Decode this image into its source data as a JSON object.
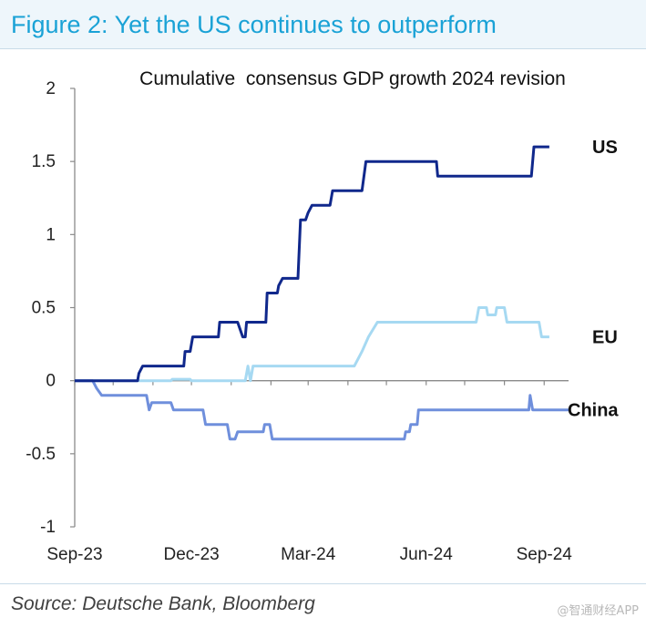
{
  "header": {
    "title": "Figure 2: Yet the US continues to outperform"
  },
  "footer": {
    "source": "Source: Deutsche Bank, Bloomberg",
    "watermark": "@智通财经APP"
  },
  "colors": {
    "us": "#10288c",
    "eu": "#a6d9f2",
    "china": "#6f8fdc",
    "heading": "#1aa2d6"
  },
  "chart_data": {
    "type": "line",
    "title": "Cumulative  consensus GDP growth 2024 revision",
    "xlabel": "",
    "ylabel": "",
    "x_range": [
      "2023-09-01",
      "2024-09-20"
    ],
    "ylim": [
      -1,
      2
    ],
    "yticks": [
      {
        "value": 2,
        "label": "2"
      },
      {
        "value": 1.5,
        "label": "1.5"
      },
      {
        "value": 1,
        "label": "1"
      },
      {
        "value": 0.5,
        "label": "0.5"
      },
      {
        "value": 0,
        "label": "0"
      },
      {
        "value": -0.5,
        "label": "-0.5"
      },
      {
        "value": -1,
        "label": "-1"
      }
    ],
    "xticks": [
      {
        "date": "2023-09-01",
        "label": "Sep-23"
      },
      {
        "date": "2023-12-01",
        "label": "Dec-23"
      },
      {
        "date": "2024-03-01",
        "label": "Mar-24"
      },
      {
        "date": "2024-06-01",
        "label": "Jun-24"
      },
      {
        "date": "2024-09-01",
        "label": "Sep-24"
      }
    ],
    "grid": false,
    "series": [
      {
        "name": "US",
        "points": [
          [
            "2023-09-01",
            0
          ],
          [
            "2023-10-20",
            0
          ],
          [
            "2023-10-21",
            0.05
          ],
          [
            "2023-10-24",
            0.1
          ],
          [
            "2023-11-25",
            0.1
          ],
          [
            "2023-11-26",
            0.2
          ],
          [
            "2023-11-30",
            0.2
          ],
          [
            "2023-12-02",
            0.3
          ],
          [
            "2023-12-22",
            0.3
          ],
          [
            "2023-12-23",
            0.4
          ],
          [
            "2024-01-06",
            0.4
          ],
          [
            "2024-01-10",
            0.3
          ],
          [
            "2024-01-12",
            0.3
          ],
          [
            "2024-01-13",
            0.4
          ],
          [
            "2024-01-28",
            0.4
          ],
          [
            "2024-01-29",
            0.6
          ],
          [
            "2024-02-06",
            0.6
          ],
          [
            "2024-02-07",
            0.65
          ],
          [
            "2024-02-10",
            0.7
          ],
          [
            "2024-02-22",
            0.7
          ],
          [
            "2024-02-24",
            1.1
          ],
          [
            "2024-02-28",
            1.1
          ],
          [
            "2024-03-01",
            1.15
          ],
          [
            "2024-03-04",
            1.2
          ],
          [
            "2024-03-18",
            1.2
          ],
          [
            "2024-03-20",
            1.3
          ],
          [
            "2024-04-12",
            1.3
          ],
          [
            "2024-04-15",
            1.5
          ],
          [
            "2024-06-09",
            1.5
          ],
          [
            "2024-06-10",
            1.4
          ],
          [
            "2024-08-22",
            1.4
          ],
          [
            "2024-08-24",
            1.6
          ],
          [
            "2024-09-05",
            1.6
          ]
        ]
      },
      {
        "name": "EU",
        "points": [
          [
            "2023-09-01",
            0
          ],
          [
            "2023-11-15",
            0
          ],
          [
            "2023-11-16",
            0.01
          ],
          [
            "2023-11-30",
            0.01
          ],
          [
            "2023-12-01",
            0
          ],
          [
            "2024-01-12",
            0
          ],
          [
            "2024-01-14",
            0.1
          ],
          [
            "2024-01-16",
            0
          ],
          [
            "2024-01-18",
            0.1
          ],
          [
            "2024-04-06",
            0.1
          ],
          [
            "2024-04-12",
            0.2
          ],
          [
            "2024-04-17",
            0.3
          ],
          [
            "2024-04-24",
            0.4
          ],
          [
            "2024-07-10",
            0.4
          ],
          [
            "2024-07-12",
            0.5
          ],
          [
            "2024-07-18",
            0.5
          ],
          [
            "2024-07-19",
            0.45
          ],
          [
            "2024-07-25",
            0.45
          ],
          [
            "2024-07-26",
            0.5
          ],
          [
            "2024-08-01",
            0.5
          ],
          [
            "2024-08-03",
            0.4
          ],
          [
            "2024-08-28",
            0.4
          ],
          [
            "2024-08-30",
            0.3
          ],
          [
            "2024-09-05",
            0.3
          ]
        ]
      },
      {
        "name": "China",
        "points": [
          [
            "2023-09-01",
            0
          ],
          [
            "2023-09-15",
            0
          ],
          [
            "2023-09-18",
            -0.05
          ],
          [
            "2023-09-22",
            -0.1
          ],
          [
            "2023-10-27",
            -0.1
          ],
          [
            "2023-10-29",
            -0.2
          ],
          [
            "2023-10-31",
            -0.15
          ],
          [
            "2023-11-15",
            -0.15
          ],
          [
            "2023-11-17",
            -0.2
          ],
          [
            "2023-12-10",
            -0.2
          ],
          [
            "2023-12-12",
            -0.3
          ],
          [
            "2023-12-29",
            -0.3
          ],
          [
            "2023-12-31",
            -0.4
          ],
          [
            "2024-01-04",
            -0.4
          ],
          [
            "2024-01-06",
            -0.35
          ],
          [
            "2024-01-26",
            -0.35
          ],
          [
            "2024-01-27",
            -0.3
          ],
          [
            "2024-01-31",
            -0.3
          ],
          [
            "2024-02-02",
            -0.4
          ],
          [
            "2024-05-15",
            -0.4
          ],
          [
            "2024-05-16",
            -0.35
          ],
          [
            "2024-05-19",
            -0.35
          ],
          [
            "2024-05-20",
            -0.3
          ],
          [
            "2024-05-25",
            -0.3
          ],
          [
            "2024-05-26",
            -0.2
          ],
          [
            "2024-08-20",
            -0.2
          ],
          [
            "2024-08-21",
            -0.1
          ],
          [
            "2024-08-23",
            -0.2
          ],
          [
            "2024-09-20",
            -0.2
          ]
        ]
      }
    ]
  }
}
